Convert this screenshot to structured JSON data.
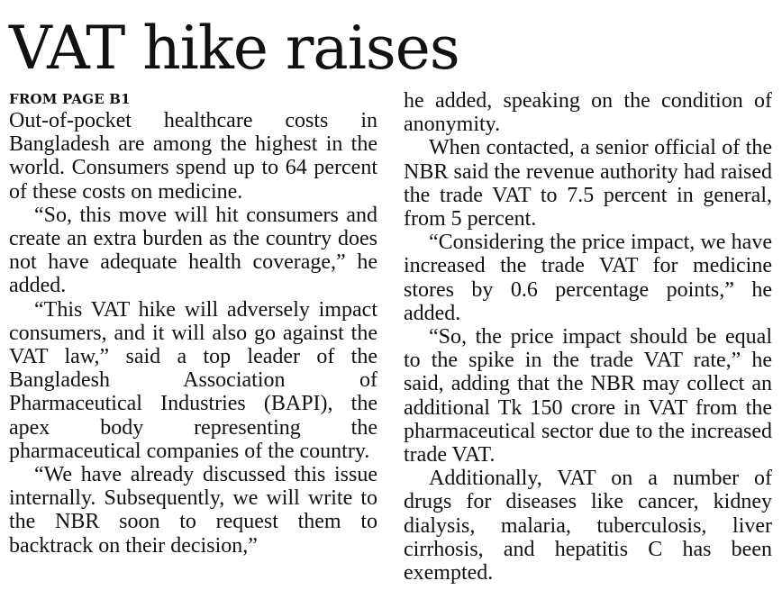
{
  "headline": "VAT hike raises",
  "kicker": "FROM PAGE B1",
  "left_column": [
    "Out-of-pocket healthcare costs in Bangladesh are among the highest in the world. Consumers spend up to 64 percent of these costs on medicine.",
    "“So, this move will hit consumers and create an extra burden as the country does not have adequate health coverage,” he added.",
    "“This VAT hike will adversely impact consumers, and it will also go against the VAT law,” said a top leader of the Bangladesh Association of Pharmaceutical Industries (BAPI), the apex body representing the pharmaceutical companies of the country.",
    "“We have already discussed this issue internally. Subsequently, we will write to the NBR soon to request them to backtrack on their decision,”"
  ],
  "right_column": [
    "he added, speaking on the condition of anonymity.",
    "When contacted, a senior official of the NBR said the revenue authority had raised the trade VAT to 7.5 percent in general, from 5 percent.",
    "“Considering the price impact, we have increased the trade VAT for medicine stores by 0.6 percentage points,” he added.",
    "“So, the price impact should be equal to the spike in the trade VAT rate,” he said, adding that the NBR may collect an additional Tk 150 crore in VAT from the pharmaceutical sector due to the increased trade VAT.",
    "Additionally, VAT on a number of drugs for diseases like cancer, kidney dialysis, malaria, tuberculosis, liver cirrhosis, and hepatitis C has been exempted."
  ]
}
